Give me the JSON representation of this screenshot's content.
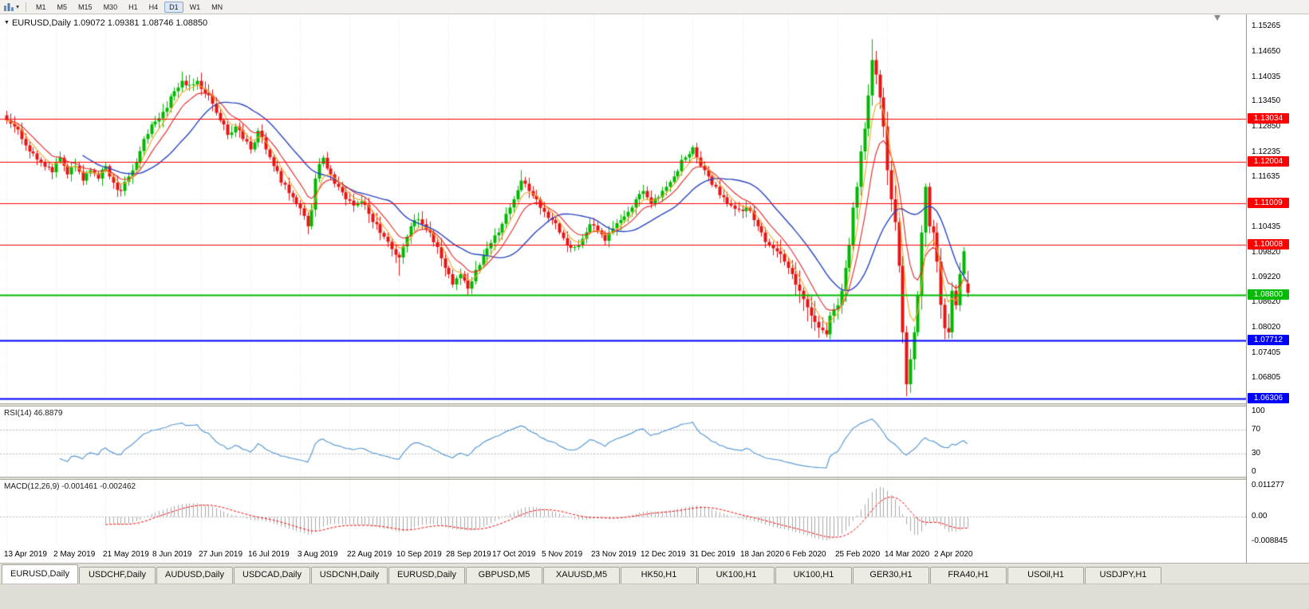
{
  "toolbar": {
    "timeframes": [
      "M1",
      "M5",
      "M15",
      "M30",
      "H1",
      "H4",
      "D1",
      "W1",
      "MN"
    ],
    "active_timeframe": "D1"
  },
  "chart": {
    "title_line": "EURUSD,Daily 1.09072 1.09381 1.08746 1.08850",
    "symbol": "EURUSD",
    "period": "Daily",
    "open": "1.09072",
    "high": "1.09381",
    "low": "1.08746",
    "close": "1.08850"
  },
  "indicators": {
    "rsi": {
      "label": "RSI(14) 46.8879",
      "period": 14,
      "current": 46.8879,
      "axis": [
        "100",
        "70",
        "30",
        "0"
      ],
      "dotted_levels": [
        70,
        30
      ],
      "color": "#5B9BD5"
    },
    "macd": {
      "label": "MACD(12,26,9) -0.001461 -0.002462",
      "params": "12,26,9",
      "current_macd": -0.001461,
      "current_signal": -0.002462,
      "axis_max": "0.011277",
      "axis_zero": "0.00",
      "axis_min": "-0.008845",
      "hist_color": "#A9A9A9",
      "signal_color": "#FF0000"
    }
  },
  "chart_data": {
    "type": "candlestick",
    "symbol": "EURUSD",
    "timeframe": "Daily",
    "candle_count": 253,
    "ylim": [
      1.0619,
      1.1555
    ],
    "candle_up_color": "#00B800",
    "candle_down_color": "#E81414",
    "grid_color": "#e4e4e4",
    "price_ticks": [
      "1.15265",
      "1.14650",
      "1.14035",
      "1.13450",
      "1.12850",
      "1.12235",
      "1.11635",
      "1.10435",
      "1.09820",
      "1.09220",
      "1.08620",
      "1.08020",
      "1.07405",
      "1.06805"
    ],
    "x_labels": [
      "13 Apr 2019",
      "2 May 2019",
      "21 May 2019",
      "8 Jun 2019",
      "27 Jun 2019",
      "16 Jul 2019",
      "3 Aug 2019",
      "22 Aug 2019",
      "10 Sep 2019",
      "28 Sep 2019",
      "17 Oct 2019",
      "5 Nov 2019",
      "23 Nov 2019",
      "12 Dec 2019",
      "31 Dec 2019",
      "18 Jan 2020",
      "6 Feb 2020",
      "25 Feb 2020",
      "14 Mar 2020",
      "2 Apr 2020"
    ],
    "levels": [
      {
        "price": 1.13034,
        "label": "1.13034",
        "color": "#FF0000",
        "width": 1,
        "kind": "resistance-line"
      },
      {
        "price": 1.12004,
        "label": "1.12004",
        "color": "#FF0000",
        "width": 1,
        "kind": "resistance-line"
      },
      {
        "price": 1.11009,
        "label": "1.11009",
        "color": "#FF0000",
        "width": 1,
        "kind": "resistance-line"
      },
      {
        "price": 1.10008,
        "label": "1.10008",
        "color": "#FF0000",
        "width": 1,
        "kind": "resistance-line"
      },
      {
        "price": 1.088,
        "label": "1.08800",
        "color": "#00BB00",
        "width": 2,
        "kind": "support-line"
      },
      {
        "price": 1.07712,
        "label": "1.07712",
        "color": "#0000FF",
        "width": 2,
        "kind": "support-line"
      },
      {
        "price": 1.06306,
        "label": "1.06306",
        "color": "#0000FF",
        "width": 2,
        "kind": "support-line"
      }
    ],
    "moving_averages": [
      {
        "name": "fast",
        "type": "ema",
        "period": 5,
        "color": "#F5A623"
      },
      {
        "name": "medium",
        "type": "ema",
        "period": 10,
        "color": "#E22828"
      },
      {
        "name": "slow",
        "type": "sma",
        "period": 21,
        "color": "#2A45C4"
      }
    ],
    "close_waypoints": [
      [
        0,
        1.13
      ],
      [
        2,
        1.1285
      ],
      [
        4,
        1.1255
      ],
      [
        6,
        1.1225
      ],
      [
        9,
        1.12
      ],
      [
        12,
        1.1175
      ],
      [
        14,
        1.121
      ],
      [
        16,
        1.117
      ],
      [
        18,
        1.119
      ],
      [
        20,
        1.1155
      ],
      [
        22,
        1.118
      ],
      [
        24,
        1.116
      ],
      [
        26,
        1.119
      ],
      [
        28,
        1.115
      ],
      [
        30,
        1.113
      ],
      [
        32,
        1.1165
      ],
      [
        34,
        1.12
      ],
      [
        36,
        1.1255
      ],
      [
        38,
        1.129
      ],
      [
        40,
        1.1305
      ],
      [
        42,
        1.133
      ],
      [
        44,
        1.137
      ],
      [
        46,
        1.1395
      ],
      [
        48,
        1.1385
      ],
      [
        50,
        1.1395
      ],
      [
        52,
        1.1365
      ],
      [
        54,
        1.134
      ],
      [
        56,
        1.13
      ],
      [
        58,
        1.1265
      ],
      [
        60,
        1.1285
      ],
      [
        62,
        1.1255
      ],
      [
        64,
        1.123
      ],
      [
        66,
        1.1275
      ],
      [
        68,
        1.123
      ],
      [
        70,
        1.119
      ],
      [
        72,
        1.115
      ],
      [
        74,
        1.1125
      ],
      [
        76,
        1.11
      ],
      [
        78,
        1.107
      ],
      [
        79,
        1.1045
      ],
      [
        80,
        1.1085
      ],
      [
        81,
        1.116
      ],
      [
        82,
        1.1195
      ],
      [
        83,
        1.121
      ],
      [
        85,
        1.117
      ],
      [
        87,
        1.114
      ],
      [
        89,
        1.111
      ],
      [
        91,
        1.1095
      ],
      [
        93,
        1.1105
      ],
      [
        95,
        1.1075
      ],
      [
        97,
        1.105
      ],
      [
        99,
        1.102
      ],
      [
        101,
        1.099
      ],
      [
        103,
        1.097
      ],
      [
        105,
        1.102
      ],
      [
        107,
        1.106
      ],
      [
        109,
        1.105
      ],
      [
        111,
        1.103
      ],
      [
        113,
        1.0995
      ],
      [
        115,
        1.0945
      ],
      [
        117,
        1.0905
      ],
      [
        119,
        1.093
      ],
      [
        121,
        1.0895
      ],
      [
        123,
        1.094
      ],
      [
        125,
        1.0975
      ],
      [
        127,
        1.1005
      ],
      [
        129,
        1.103
      ],
      [
        131,
        1.1075
      ],
      [
        133,
        1.111
      ],
      [
        135,
        1.1155
      ],
      [
        137,
        1.113
      ],
      [
        139,
        1.111
      ],
      [
        141,
        1.108
      ],
      [
        143,
        1.106
      ],
      [
        145,
        1.103
      ],
      [
        147,
        1.1
      ],
      [
        149,
        1.0995
      ],
      [
        151,
        1.1015
      ],
      [
        153,
        1.105
      ],
      [
        155,
        1.1035
      ],
      [
        157,
        1.101
      ],
      [
        159,
        1.104
      ],
      [
        161,
        1.106
      ],
      [
        163,
        1.108
      ],
      [
        165,
        1.111
      ],
      [
        167,
        1.113
      ],
      [
        169,
        1.11
      ],
      [
        171,
        1.1115
      ],
      [
        173,
        1.114
      ],
      [
        175,
        1.1165
      ],
      [
        177,
        1.1205
      ],
      [
        180,
        1.1235
      ],
      [
        182,
        1.119
      ],
      [
        184,
        1.1165
      ],
      [
        186,
        1.114
      ],
      [
        188,
        1.1115
      ],
      [
        190,
        1.1095
      ],
      [
        192,
        1.1085
      ],
      [
        194,
        1.109
      ],
      [
        196,
        1.106
      ],
      [
        198,
        1.103
      ],
      [
        200,
        1.1
      ],
      [
        202,
        1.0985
      ],
      [
        204,
        1.096
      ],
      [
        206,
        1.093
      ],
      [
        208,
        1.089
      ],
      [
        210,
        1.085
      ],
      [
        212,
        1.0815
      ],
      [
        214,
        1.0795
      ],
      [
        215,
        1.0785
      ],
      [
        216,
        1.083
      ],
      [
        217,
        1.0845
      ],
      [
        218,
        1.0855
      ],
      [
        219,
        1.089
      ],
      [
        220,
        1.0945
      ],
      [
        221,
        1.1
      ],
      [
        222,
        1.109
      ],
      [
        223,
        1.114
      ],
      [
        224,
        1.1225
      ],
      [
        225,
        1.128
      ],
      [
        226,
        1.136
      ],
      [
        227,
        1.1445
      ],
      [
        228,
        1.141
      ],
      [
        229,
        1.1355
      ],
      [
        230,
        1.1285
      ],
      [
        231,
        1.118
      ],
      [
        232,
        1.111
      ],
      [
        233,
        1.1055
      ],
      [
        234,
        1.095
      ],
      [
        235,
        1.079
      ],
      [
        236,
        1.0665
      ],
      [
        237,
        1.0725
      ],
      [
        238,
        1.079
      ],
      [
        239,
        1.088
      ],
      [
        240,
        1.103
      ],
      [
        241,
        1.114
      ],
      [
        242,
        1.1045
      ],
      [
        243,
        1.103
      ],
      [
        244,
        1.096
      ],
      [
        245,
        1.0856
      ],
      [
        246,
        1.08
      ],
      [
        247,
        1.079
      ],
      [
        248,
        1.089
      ],
      [
        249,
        1.0855
      ],
      [
        250,
        1.093
      ],
      [
        251,
        1.0985
      ],
      [
        252,
        1.0885
      ]
    ],
    "extremes": {
      "48": {
        "high": 1.141
      },
      "79": {
        "low": 1.1026
      },
      "103": {
        "low": 1.0926
      },
      "121": {
        "low": 1.0879
      },
      "135": {
        "high": 1.118
      },
      "180": {
        "high": 1.124
      },
      "215": {
        "low": 1.0778
      },
      "227": {
        "high": 1.1495
      },
      "236": {
        "low": 1.0636
      },
      "241": {
        "high": 1.1148
      },
      "246": {
        "low": 1.0773
      },
      "251": {
        "high": 1.0995
      }
    },
    "last_candle": [
      1.09072,
      1.09381,
      1.08746,
      1.0885
    ]
  },
  "tabs": [
    "EURUSD,Daily",
    "USDCHF,Daily",
    "AUDUSD,Daily",
    "USDCAD,Daily",
    "USDCNH,Daily",
    "EURUSD,Daily",
    "GBPUSD,M5",
    "XAUUSD,M5",
    "HK50,H1",
    "UK100,H1",
    "UK100,H1",
    "GER30,H1",
    "FRA40,H1",
    "USOil,H1",
    "USDJPY,H1"
  ]
}
